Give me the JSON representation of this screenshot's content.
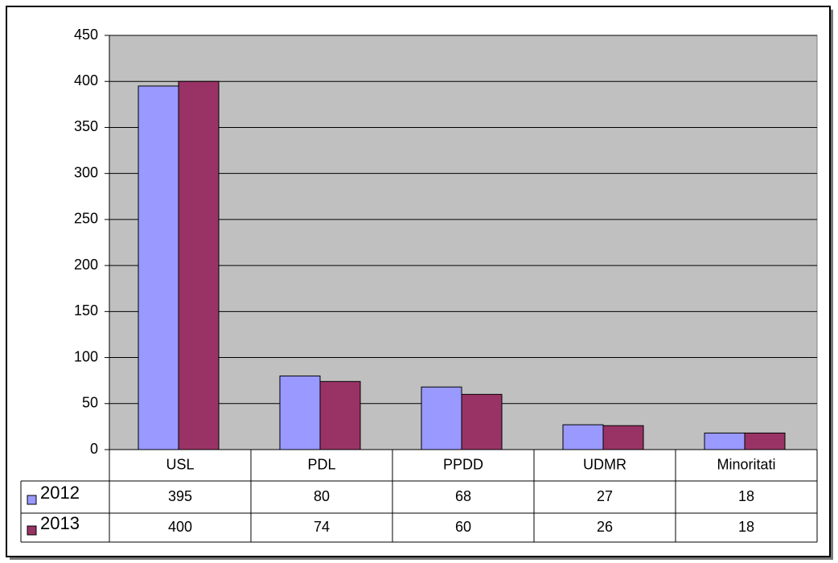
{
  "chart_data": {
    "type": "bar",
    "categories": [
      "USL",
      "PDL",
      "PPDD",
      "UDMR",
      "Minoritati"
    ],
    "series": [
      {
        "name": "2012",
        "color": "#9999ff",
        "values": [
          395,
          80,
          68,
          27,
          18
        ]
      },
      {
        "name": "2013",
        "color": "#993366",
        "values": [
          400,
          74,
          60,
          26,
          18
        ]
      }
    ],
    "ylim": [
      0,
      450
    ],
    "yticks": [
      0,
      50,
      100,
      150,
      200,
      250,
      300,
      350,
      400,
      450
    ],
    "grid": true
  }
}
